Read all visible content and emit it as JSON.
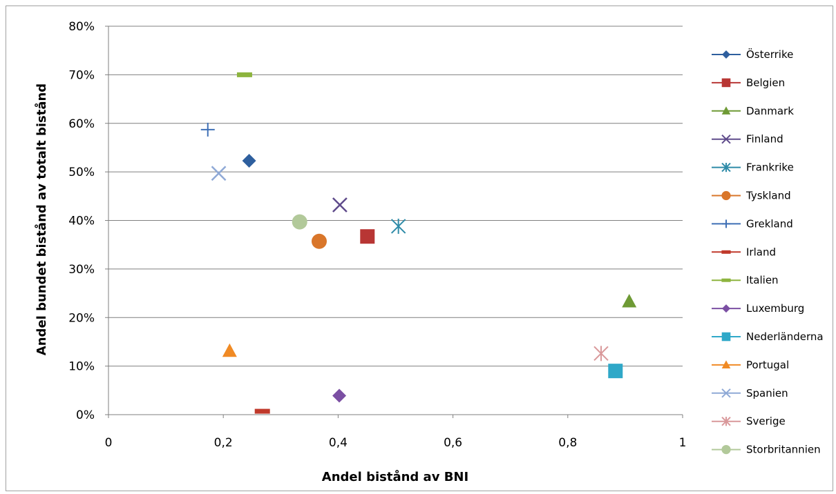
{
  "chart_data": {
    "type": "scatter",
    "title": "",
    "xlabel": "Andel bistånd av BNI",
    "ylabel": "Andel bundet bistånd av totalt bistånd",
    "xlim": [
      0,
      1
    ],
    "ylim": [
      0,
      0.8
    ],
    "x_ticks": [
      {
        "value": 0,
        "label": "0"
      },
      {
        "value": 0.2,
        "label": "0,2"
      },
      {
        "value": 0.4,
        "label": "0,4"
      },
      {
        "value": 0.6,
        "label": "0,6"
      },
      {
        "value": 0.8,
        "label": "0,8"
      },
      {
        "value": 1,
        "label": "1"
      }
    ],
    "y_ticks": [
      {
        "value": 0,
        "label": "0%"
      },
      {
        "value": 0.1,
        "label": "10%"
      },
      {
        "value": 0.2,
        "label": "20%"
      },
      {
        "value": 0.3,
        "label": "30%"
      },
      {
        "value": 0.4,
        "label": "40%"
      },
      {
        "value": 0.5,
        "label": "50%"
      },
      {
        "value": 0.6,
        "label": "60%"
      },
      {
        "value": 0.7,
        "label": "70%"
      },
      {
        "value": 0.8,
        "label": "80%"
      }
    ],
    "grid": "horizontal",
    "legend_position": "right",
    "series": [
      {
        "name": "Österrike",
        "x": 0.245,
        "y": 0.523,
        "marker": "diamond",
        "color": "#2E5F9E"
      },
      {
        "name": "Belgien",
        "x": 0.451,
        "y": 0.367,
        "marker": "square",
        "color": "#B83634"
      },
      {
        "name": "Danmark",
        "x": 0.907,
        "y": 0.233,
        "marker": "triangle",
        "color": "#6E9A35"
      },
      {
        "name": "Finland",
        "x": 0.403,
        "y": 0.432,
        "marker": "x",
        "color": "#5F4B8B"
      },
      {
        "name": "Frankrike",
        "x": 0.505,
        "y": 0.388,
        "marker": "star",
        "color": "#2E8BA8"
      },
      {
        "name": "Tyskland",
        "x": 0.367,
        "y": 0.357,
        "marker": "circle",
        "color": "#D9762A"
      },
      {
        "name": "Grekland",
        "x": 0.173,
        "y": 0.587,
        "marker": "plus",
        "color": "#3E6FB5"
      },
      {
        "name": "Irland",
        "x": 0.268,
        "y": 0.007,
        "marker": "dash",
        "color": "#C0392B"
      },
      {
        "name": "Italien",
        "x": 0.237,
        "y": 0.7,
        "marker": "dash",
        "color": "#8DB43E"
      },
      {
        "name": "Luxemburg",
        "x": 0.402,
        "y": 0.039,
        "marker": "diamond",
        "color": "#7B4FA3"
      },
      {
        "name": "Nederländerna",
        "x": 0.883,
        "y": 0.09,
        "marker": "square",
        "color": "#2FA8C8"
      },
      {
        "name": "Portugal",
        "x": 0.211,
        "y": 0.131,
        "marker": "triangle",
        "color": "#F08A24"
      },
      {
        "name": "Spanien",
        "x": 0.192,
        "y": 0.497,
        "marker": "x",
        "color": "#8FA9D6"
      },
      {
        "name": "Sverige",
        "x": 0.858,
        "y": 0.126,
        "marker": "star",
        "color": "#D9989A"
      },
      {
        "name": "Storbritannien",
        "x": 0.333,
        "y": 0.397,
        "marker": "circle",
        "color": "#B2C99A"
      }
    ]
  }
}
